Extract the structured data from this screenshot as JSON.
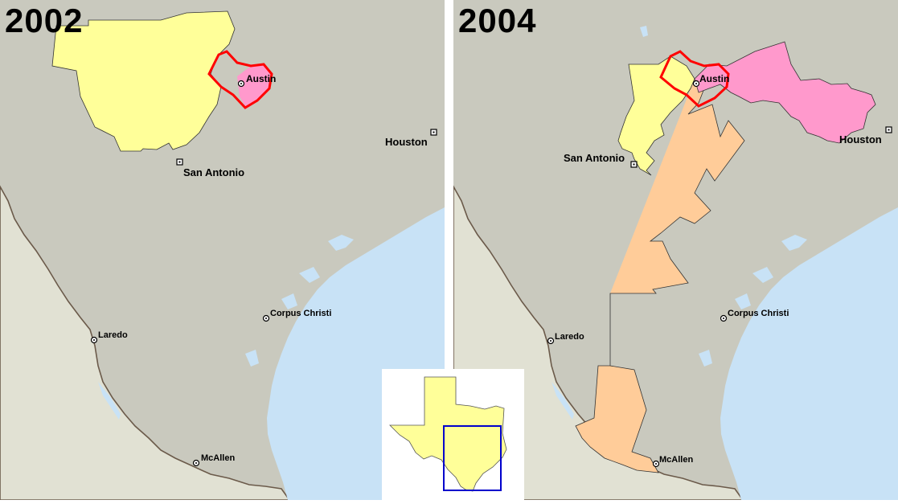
{
  "colors": {
    "land": "#c9c9be",
    "mexico": "#e1e1d3",
    "water": "#c8e2f6",
    "district_yellow": "#ffff99",
    "district_pink": "#ff99cc",
    "district_orange": "#ffcc99",
    "district_outline": "#ff0000",
    "inset_box": "#0000cc"
  },
  "left_map": {
    "year": "2002",
    "cities": {
      "austin": "Austin",
      "houston": "Houston",
      "san_antonio": "San Antonio",
      "corpus_christi": "Corpus Christi",
      "laredo": "Laredo",
      "mcallen": "McAllen"
    }
  },
  "right_map": {
    "year": "2004",
    "cities": {
      "austin": "Austin",
      "houston": "Houston",
      "san_antonio": "San Antonio",
      "corpus_christi": "Corpus Christi",
      "laredo": "Laredo",
      "mcallen": "McAllen"
    }
  },
  "inset": {
    "state_icon": "texas-shape-icon",
    "highlight_icon": "region-box-icon"
  }
}
